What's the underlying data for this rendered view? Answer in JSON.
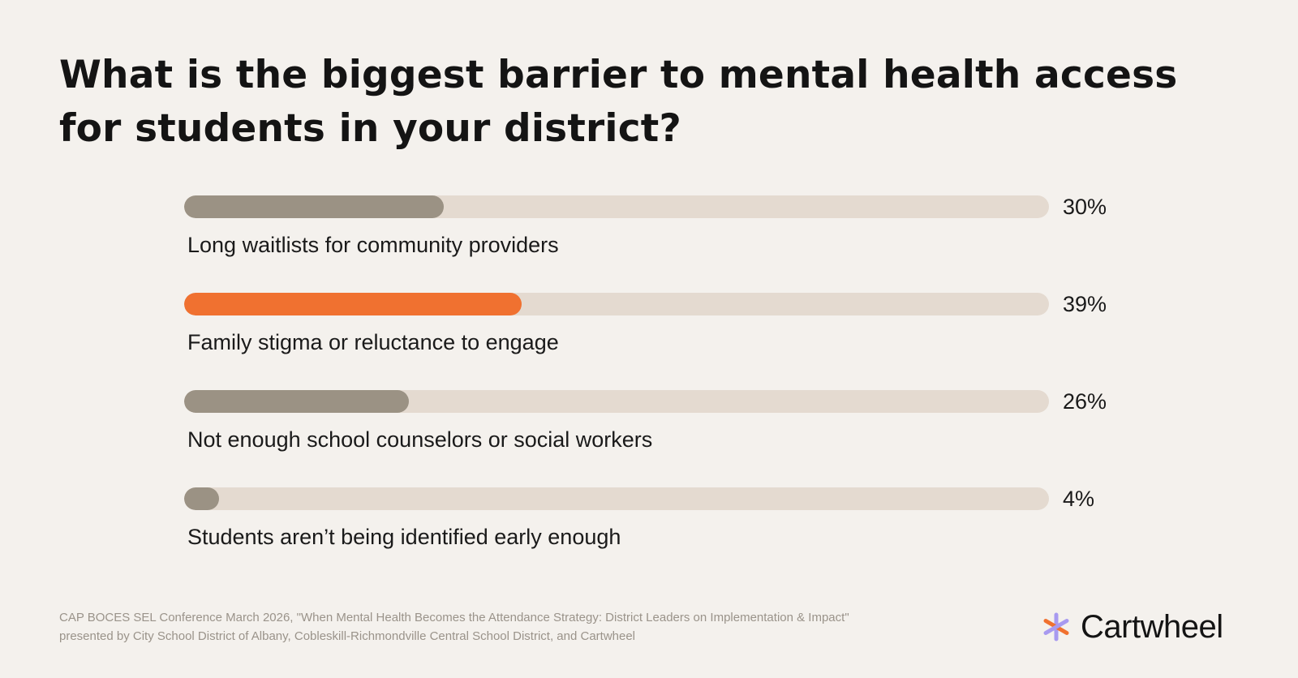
{
  "chart_data": {
    "type": "bar",
    "orientation": "horizontal",
    "title": "What is the biggest barrier to mental health access for students in your district?",
    "categories": [
      "Long waitlists for community providers",
      "Family stigma or reluctance to engage",
      "Not enough school counselors or social workers",
      "Students aren’t being identified early enough"
    ],
    "values": [
      30,
      39,
      26,
      4
    ],
    "value_labels": [
      "30%",
      "39%",
      "26%",
      "4%"
    ],
    "highlight_index": 1,
    "xlim": [
      0,
      100
    ],
    "grid": false,
    "legend": "none"
  },
  "colors": {
    "background": "#f4f1ed",
    "track": "#e4dad0",
    "bar": "#9b9284",
    "highlight": "#f07130",
    "logo_orange": "#f07130",
    "logo_purple": "#a89af0"
  },
  "source": "CAP BOCES SEL Conference March 2026, \"When Mental Health Becomes the Attendance Strategy: District Leaders on Implementation & Impact\" presented by City School District of Albany, Cobleskill-Richmondville Central School District, and Cartwheel",
  "brand": {
    "name": "Cartwheel",
    "icon": "cartwheel-asterisk-icon"
  }
}
